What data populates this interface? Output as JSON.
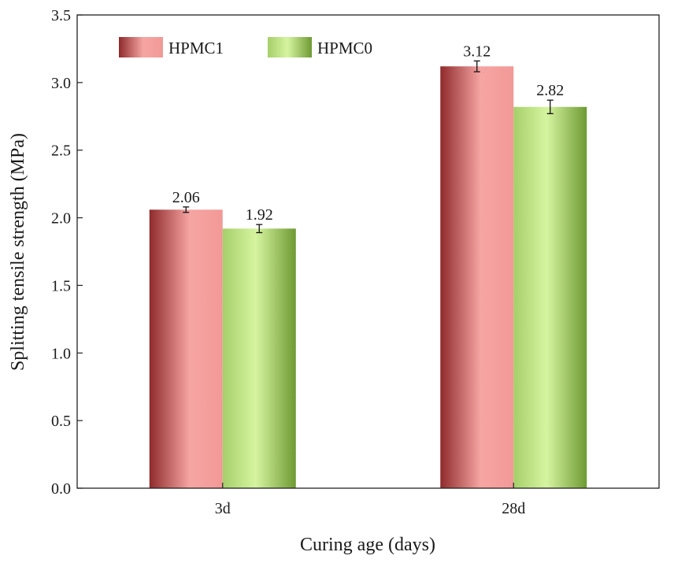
{
  "chart_data": {
    "type": "bar",
    "title": "",
    "xlabel": "Curing age (days)",
    "ylabel": "Splitting tensile strength (MPa)",
    "ylim": [
      0,
      3.5
    ],
    "yticks": [
      "0.0",
      "0.5",
      "1.0",
      "1.5",
      "2.0",
      "2.5",
      "3.0",
      "3.5"
    ],
    "categories": [
      "3d",
      "28d"
    ],
    "series": [
      {
        "name": "HPMC1",
        "values": [
          2.06,
          3.12
        ],
        "labels": [
          "2.06",
          "3.12"
        ],
        "errors": [
          0.02,
          0.04
        ],
        "colors": {
          "dark": "#8f2a2c",
          "light": "#f6a5a3"
        }
      },
      {
        "name": "HPMC0",
        "values": [
          1.92,
          2.82
        ],
        "labels": [
          "1.92",
          "2.82"
        ],
        "errors": [
          0.03,
          0.05
        ],
        "colors": {
          "dark": "#6e9a33",
          "light": "#d6f4a0"
        }
      }
    ],
    "legend_position": "top-left",
    "grid": false
  }
}
